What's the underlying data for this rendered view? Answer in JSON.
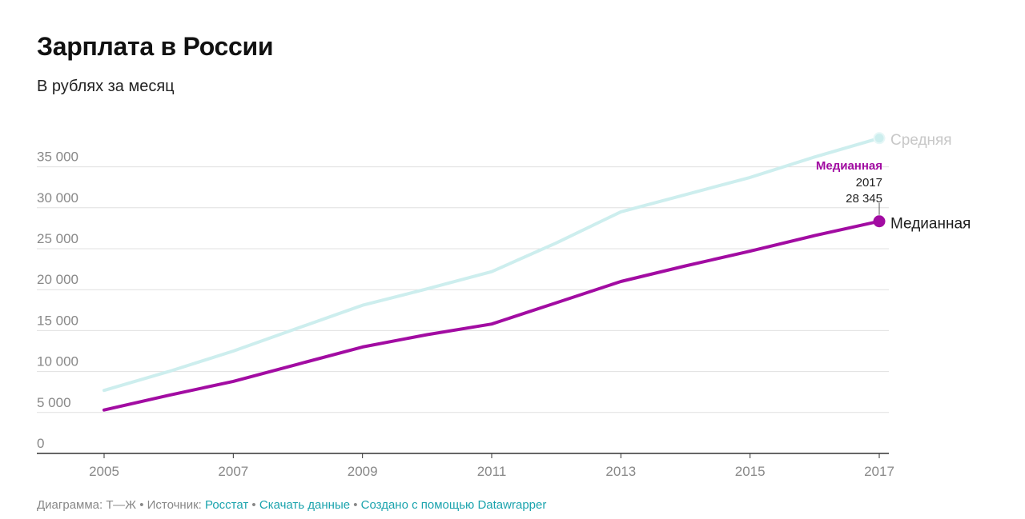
{
  "title": "Зарплата в России",
  "subtitle": "В рублях за месяц",
  "footer": {
    "prefix": "Диаграмма: Т—Ж • Источник: ",
    "source_link": "Росстат",
    "sep1": " • ",
    "download_link": "Скачать данные",
    "sep2": " • ",
    "made_with_link": "Создано с помощью Datawrapper"
  },
  "colors": {
    "median": "#a20ca2",
    "average": "#cdeeee",
    "average_label": "#c8c8c8",
    "grid": "#e0e0e0",
    "axis": "#333333",
    "tick_text": "#888888",
    "link": "#1aa3ad"
  },
  "chart_data": {
    "type": "line",
    "x": [
      2005,
      2006,
      2007,
      2008,
      2009,
      2010,
      2011,
      2012,
      2013,
      2014,
      2015,
      2016,
      2017
    ],
    "xticks": [
      "2005",
      "2007",
      "2009",
      "2011",
      "2013",
      "2015",
      "2017"
    ],
    "yticks": [
      "0",
      "5 000",
      "10 000",
      "15 000",
      "20 000",
      "25 000",
      "30 000",
      "35 000"
    ],
    "ylim": [
      0,
      35000
    ],
    "xlim": [
      2005,
      2017
    ],
    "grid": "horizontal",
    "series": [
      {
        "name": "Средняя",
        "values": [
          7700,
          10000,
          12500,
          15300,
          18100,
          20100,
          22200,
          25700,
          29500,
          31600,
          33700,
          36200,
          38500
        ]
      },
      {
        "name": "Медианная",
        "values": [
          5300,
          7100,
          8800,
          10900,
          13000,
          14500,
          15800,
          18400,
          21000,
          22900,
          24700,
          26600,
          28345
        ]
      }
    ],
    "annotation": {
      "series": "Медианная",
      "label": "Медианная",
      "x_text": "2017",
      "y_text": "28 345"
    }
  }
}
